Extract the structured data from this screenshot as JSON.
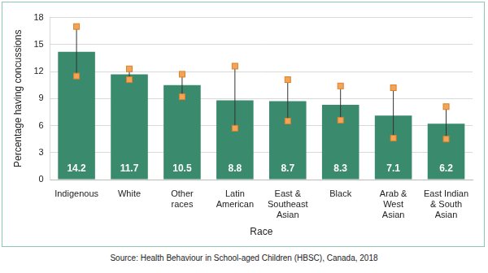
{
  "chart_data": {
    "type": "bar",
    "x_label": "Race",
    "y_label": "Percentage having concussions",
    "source": "Source: Health Behaviour in School-aged Children (HBSC), Canada, 2018",
    "categories": [
      "Indigenous",
      "White",
      "Other\nraces",
      "Latin\nAmerican",
      "East &\nSoutheast\nAsian",
      "Black",
      "Arab &\nWest\nAsian",
      "East Indian\n& South\nAsian"
    ],
    "values": [
      14.2,
      11.7,
      10.5,
      8.8,
      8.7,
      8.3,
      7.1,
      6.2
    ],
    "error_low": [
      11.5,
      11.1,
      9.2,
      5.7,
      6.5,
      6.6,
      4.6,
      4.5
    ],
    "error_high": [
      17.0,
      12.3,
      11.7,
      12.6,
      11.1,
      10.4,
      10.2,
      8.1
    ],
    "color": "#3a8a6d",
    "ylim": [
      0,
      18
    ],
    "yticks": [
      0,
      3,
      6,
      9,
      12,
      15,
      18
    ],
    "grid": true,
    "data_labels": true
  }
}
